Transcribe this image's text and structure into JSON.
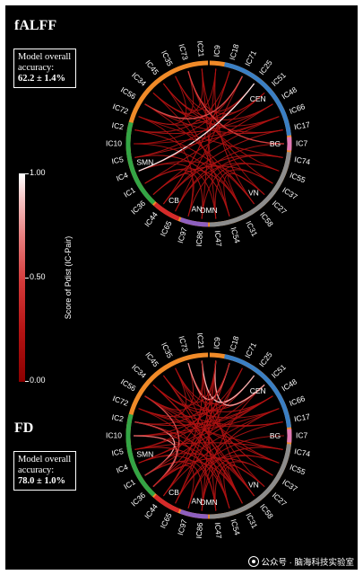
{
  "panels": [
    {
      "title": "fALFF",
      "accuracy_label": "Model overall accuracy:",
      "accuracy_value": "62.2 ± 1.4%",
      "connections": [
        [
          "IC35",
          "IC72",
          0.25
        ],
        [
          "IC73",
          "IC56",
          0.25
        ],
        [
          "IC21",
          "IC34",
          0.3
        ],
        [
          "IC9",
          "IC45",
          0.25
        ],
        [
          "IC18",
          "IC2",
          0.3
        ],
        [
          "IC71",
          "IC10",
          0.2
        ],
        [
          "IC25",
          "IC5",
          0.3
        ],
        [
          "IC51",
          "IC4",
          0.25
        ],
        [
          "IC48",
          "IC1",
          0.3
        ],
        [
          "IC66",
          "IC36",
          0.25
        ],
        [
          "IC17",
          "IC44",
          0.3
        ],
        [
          "IC7",
          "IC65",
          0.25
        ],
        [
          "IC74",
          "IC97",
          0.3
        ],
        [
          "IC55",
          "IC86",
          0.25
        ],
        [
          "IC37",
          "IC47",
          0.3
        ],
        [
          "IC27",
          "IC54",
          0.25
        ],
        [
          "IC58",
          "IC31",
          0.3
        ],
        [
          "IC35",
          "IC55",
          0.2
        ],
        [
          "IC73",
          "IC37",
          0.25
        ],
        [
          "IC21",
          "IC27",
          0.2
        ],
        [
          "IC45",
          "IC48",
          0.3
        ],
        [
          "IC34",
          "IC66",
          0.25
        ],
        [
          "IC56",
          "IC17",
          0.3
        ],
        [
          "IC72",
          "IC74",
          0.25
        ],
        [
          "IC2",
          "IC58",
          0.3
        ],
        [
          "IC10",
          "IC31",
          0.25
        ],
        [
          "IC5",
          "IC54",
          0.3
        ],
        [
          "IC4",
          "IC47",
          0.25
        ],
        [
          "IC1",
          "IC86",
          0.3
        ],
        [
          "IC36",
          "IC97",
          0.25
        ],
        [
          "IC44",
          "IC18",
          0.3
        ],
        [
          "IC65",
          "IC71",
          0.25
        ],
        [
          "IC9",
          "IC58",
          0.3
        ],
        [
          "IC18",
          "IC44",
          0.25
        ],
        [
          "IC25",
          "IC35",
          0.3
        ],
        [
          "IC51",
          "IC73",
          0.25
        ],
        [
          "IC2",
          "IC48",
          0.3
        ],
        [
          "IC10",
          "IC66",
          0.2
        ],
        [
          "IC72",
          "IC25",
          0.3
        ],
        [
          "IC34",
          "IC51",
          0.25
        ],
        [
          "IC47",
          "IC21",
          0.3
        ],
        [
          "IC86",
          "IC9",
          0.25
        ],
        [
          "IC54",
          "IC45",
          0.3
        ],
        [
          "IC31",
          "IC34",
          0.2
        ],
        [
          "IC1",
          "IC31",
          0.3
        ],
        [
          "IC4",
          "IC27",
          0.25
        ],
        [
          "IC36",
          "IC37",
          0.3
        ],
        [
          "IC65",
          "IC55",
          0.25
        ],
        [
          "IC7",
          "IC73",
          0.55
        ],
        [
          "IC17",
          "IC45",
          0.3
        ],
        [
          "IC4",
          "IC25",
          0.95
        ],
        [
          "IC56",
          "IC71",
          0.6
        ],
        [
          "IC66",
          "IC5",
          0.3
        ],
        [
          "IC97",
          "IC72",
          0.25
        ],
        [
          "IC44",
          "IC74",
          0.3
        ],
        [
          "IC58",
          "IC56",
          0.25
        ]
      ]
    },
    {
      "title": "FD",
      "accuracy_label": "Model overall accuracy:",
      "accuracy_value": "78.0 ± 1.0%",
      "connections": [
        [
          "IC35",
          "IC72",
          0.3
        ],
        [
          "IC73",
          "IC56",
          0.25
        ],
        [
          "IC21",
          "IC34",
          0.3
        ],
        [
          "IC9",
          "IC45",
          0.25
        ],
        [
          "IC18",
          "IC2",
          0.3
        ],
        [
          "IC71",
          "IC10",
          0.25
        ],
        [
          "IC25",
          "IC5",
          0.3
        ],
        [
          "IC51",
          "IC4",
          0.25
        ],
        [
          "IC48",
          "IC1",
          0.3
        ],
        [
          "IC66",
          "IC36",
          0.25
        ],
        [
          "IC17",
          "IC44",
          0.3
        ],
        [
          "IC7",
          "IC65",
          0.25
        ],
        [
          "IC74",
          "IC97",
          0.3
        ],
        [
          "IC55",
          "IC86",
          0.25
        ],
        [
          "IC37",
          "IC47",
          0.3
        ],
        [
          "IC27",
          "IC54",
          0.25
        ],
        [
          "IC58",
          "IC31",
          0.3
        ],
        [
          "IC35",
          "IC55",
          0.25
        ],
        [
          "IC73",
          "IC37",
          0.3
        ],
        [
          "IC21",
          "IC27",
          0.25
        ],
        [
          "IC45",
          "IC48",
          0.3
        ],
        [
          "IC34",
          "IC66",
          0.25
        ],
        [
          "IC56",
          "IC17",
          0.3
        ],
        [
          "IC72",
          "IC74",
          0.25
        ],
        [
          "IC2",
          "IC58",
          0.3
        ],
        [
          "IC10",
          "IC31",
          0.25
        ],
        [
          "IC5",
          "IC54",
          0.3
        ],
        [
          "IC4",
          "IC47",
          0.25
        ],
        [
          "IC1",
          "IC86",
          0.3
        ],
        [
          "IC36",
          "IC97",
          0.25
        ],
        [
          "IC44",
          "IC18",
          0.3
        ],
        [
          "IC65",
          "IC71",
          0.25
        ],
        [
          "IC9",
          "IC58",
          0.3
        ],
        [
          "IC18",
          "IC44",
          0.25
        ],
        [
          "IC25",
          "IC35",
          0.3
        ],
        [
          "IC51",
          "IC73",
          0.25
        ],
        [
          "IC2",
          "IC48",
          0.3
        ],
        [
          "IC10",
          "IC66",
          0.25
        ],
        [
          "IC72",
          "IC25",
          0.3
        ],
        [
          "IC34",
          "IC51",
          0.25
        ],
        [
          "IC47",
          "IC21",
          0.3
        ],
        [
          "IC86",
          "IC9",
          0.25
        ],
        [
          "IC54",
          "IC45",
          0.3
        ],
        [
          "IC31",
          "IC34",
          0.25
        ],
        [
          "IC1",
          "IC31",
          0.3
        ],
        [
          "IC4",
          "IC27",
          0.25
        ],
        [
          "IC36",
          "IC37",
          0.3
        ],
        [
          "IC65",
          "IC55",
          0.25
        ],
        [
          "IC10",
          "IC48",
          0.3
        ],
        [
          "IC72",
          "IC17",
          0.25
        ],
        [
          "IC5",
          "IC74",
          0.3
        ],
        [
          "IC56",
          "IC55",
          0.25
        ],
        [
          "IC45",
          "IC58",
          0.3
        ],
        [
          "IC35",
          "IC31",
          0.25
        ],
        [
          "IC97",
          "IC66",
          0.3
        ],
        [
          "IC86",
          "IC51",
          0.25
        ],
        [
          "IC21",
          "IC25",
          0.85
        ],
        [
          "IC9",
          "IC51",
          0.8
        ],
        [
          "IC73",
          "IC18",
          0.75
        ],
        [
          "IC2",
          "IC1",
          0.8
        ],
        [
          "IC10",
          "IC36",
          0.7
        ],
        [
          "IC56",
          "IC36",
          0.6
        ],
        [
          "IC44",
          "IC21",
          0.3
        ],
        [
          "IC65",
          "IC9",
          0.25
        ],
        [
          "IC1",
          "IC9",
          0.3
        ],
        [
          "IC5",
          "IC18",
          0.25
        ],
        [
          "IC36",
          "IC71",
          0.3
        ],
        [
          "IC4",
          "IC48",
          0.25
        ],
        [
          "IC47",
          "IC2",
          0.3
        ],
        [
          "IC54",
          "IC72",
          0.25
        ],
        [
          "IC31",
          "IC56",
          0.3
        ],
        [
          "IC58",
          "IC34",
          0.25
        ]
      ]
    }
  ],
  "networks": [
    {
      "name": "DMN",
      "color": "#f08a28",
      "nodes": [
        "IC35",
        "IC73",
        "IC21",
        "IC9",
        "IC45",
        "IC34",
        "IC56",
        "IC72"
      ]
    },
    {
      "name": "CEN",
      "color": "#3a7fc4",
      "nodes": [
        "IC18",
        "IC71",
        "IC25",
        "IC51",
        "IC48",
        "IC66",
        "IC17"
      ]
    },
    {
      "name": "BG",
      "color": "#e07ab5",
      "nodes": [
        "IC7"
      ]
    },
    {
      "name": "VN",
      "color": "#8c8c8c",
      "nodes": [
        "IC74",
        "IC55",
        "IC37",
        "IC27",
        "IC58",
        "IC31",
        "IC54",
        "IC47"
      ]
    },
    {
      "name": "AN",
      "color": "#8e5fbf",
      "nodes": [
        "IC86",
        "IC97"
      ]
    },
    {
      "name": "CB",
      "color": "#d62a2a",
      "nodes": [
        "IC65",
        "IC44"
      ]
    },
    {
      "name": "SMN",
      "color": "#33a545",
      "nodes": [
        "IC36",
        "IC1",
        "IC4",
        "IC5",
        "IC10",
        "IC2"
      ]
    }
  ],
  "node_order": [
    "IC9",
    "IC18",
    "IC71",
    "IC25",
    "IC51",
    "IC48",
    "IC66",
    "IC17",
    "IC7",
    "IC74",
    "IC55",
    "IC37",
    "IC27",
    "IC58",
    "IC31",
    "IC54",
    "IC47",
    "IC86",
    "IC97",
    "IC65",
    "IC44",
    "IC36",
    "IC1",
    "IC4",
    "IC5",
    "IC10",
    "IC2",
    "IC72",
    "IC56",
    "IC34",
    "IC45",
    "IC35",
    "IC73",
    "IC21"
  ],
  "colorbar": {
    "label": "Score of Pdist (IC-Pair)",
    "ticks": [
      "1.00",
      "0.50",
      "0.00"
    ]
  },
  "watermark": "公众号 · 脑海科技实验室"
}
